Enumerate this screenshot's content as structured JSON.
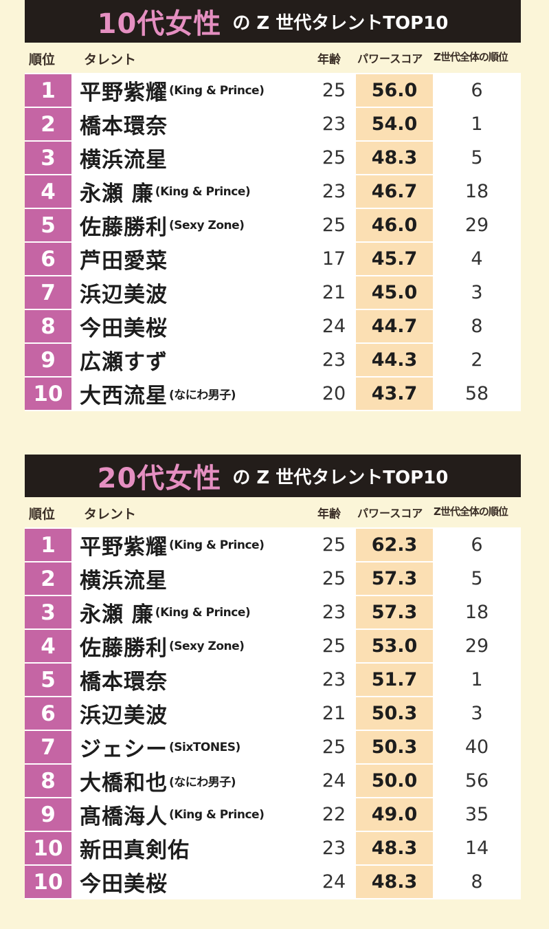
{
  "headers": {
    "rank": "順位",
    "talent": "タレント",
    "age": "年齢",
    "score": "パワースコア",
    "overall": "Z世代全体の順位"
  },
  "colors": {
    "background": "#fbf5d8",
    "banner": "#231d1a",
    "banner_title": "#e58fc1",
    "rank_cell": "#c565a4",
    "score_cell": "#fbdfb3"
  },
  "tables": [
    {
      "title_main": "10代女性",
      "title_sub": "の Z 世代タレントTOP10",
      "rows": [
        {
          "rank": "1",
          "name": "平野紫耀",
          "group": "(King & Prince)",
          "age": "25",
          "score": "56.0",
          "overall": "6"
        },
        {
          "rank": "2",
          "name": "橋本環奈",
          "group": "",
          "age": "23",
          "score": "54.0",
          "overall": "1"
        },
        {
          "rank": "3",
          "name": "横浜流星",
          "group": "",
          "age": "25",
          "score": "48.3",
          "overall": "5"
        },
        {
          "rank": "4",
          "name": "永瀬 廉",
          "group": "(King & Prince)",
          "age": "23",
          "score": "46.7",
          "overall": "18"
        },
        {
          "rank": "5",
          "name": "佐藤勝利",
          "group": "(Sexy Zone)",
          "age": "25",
          "score": "46.0",
          "overall": "29"
        },
        {
          "rank": "6",
          "name": "芦田愛菜",
          "group": "",
          "age": "17",
          "score": "45.7",
          "overall": "4"
        },
        {
          "rank": "7",
          "name": "浜辺美波",
          "group": "",
          "age": "21",
          "score": "45.0",
          "overall": "3"
        },
        {
          "rank": "8",
          "name": "今田美桜",
          "group": "",
          "age": "24",
          "score": "44.7",
          "overall": "8"
        },
        {
          "rank": "9",
          "name": "広瀬すず",
          "group": "",
          "age": "23",
          "score": "44.3",
          "overall": "2"
        },
        {
          "rank": "10",
          "name": "大西流星",
          "group": "(なにわ男子)",
          "age": "20",
          "score": "43.7",
          "overall": "58"
        }
      ]
    },
    {
      "title_main": "20代女性",
      "title_sub": "の Z 世代タレントTOP10",
      "rows": [
        {
          "rank": "1",
          "name": "平野紫耀",
          "group": "(King & Prince)",
          "age": "25",
          "score": "62.3",
          "overall": "6"
        },
        {
          "rank": "2",
          "name": "横浜流星",
          "group": "",
          "age": "25",
          "score": "57.3",
          "overall": "5"
        },
        {
          "rank": "3",
          "name": "永瀬 廉",
          "group": "(King & Prince)",
          "age": "23",
          "score": "57.3",
          "overall": "18"
        },
        {
          "rank": "4",
          "name": "佐藤勝利",
          "group": "(Sexy Zone)",
          "age": "25",
          "score": "53.0",
          "overall": "29"
        },
        {
          "rank": "5",
          "name": "橋本環奈",
          "group": "",
          "age": "23",
          "score": "51.7",
          "overall": "1"
        },
        {
          "rank": "6",
          "name": "浜辺美波",
          "group": "",
          "age": "21",
          "score": "50.3",
          "overall": "3"
        },
        {
          "rank": "7",
          "name": "ジェシー",
          "group": "(SixTONES)",
          "age": "25",
          "score": "50.3",
          "overall": "40"
        },
        {
          "rank": "8",
          "name": "大橋和也",
          "group": "(なにわ男子)",
          "age": "24",
          "score": "50.0",
          "overall": "56"
        },
        {
          "rank": "9",
          "name": "髙橋海人",
          "group": "(King & Prince)",
          "age": "22",
          "score": "49.0",
          "overall": "35"
        },
        {
          "rank": "10",
          "name": "新田真剣佑",
          "group": "",
          "age": "23",
          "score": "48.3",
          "overall": "14"
        },
        {
          "rank": "10",
          "name": "今田美桜",
          "group": "",
          "age": "24",
          "score": "48.3",
          "overall": "8"
        }
      ]
    }
  ]
}
